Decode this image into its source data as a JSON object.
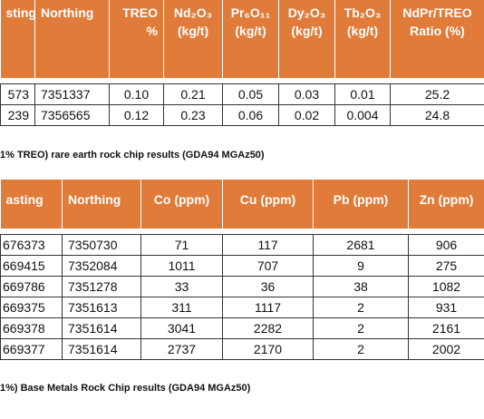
{
  "table1": {
    "header": [
      [
        "sting"
      ],
      [
        "Northing"
      ],
      [
        "TREO",
        "%"
      ],
      [
        "Nd₂O₃",
        "(kg/t)"
      ],
      [
        "Pr₆O₁₁",
        "(kg/t)"
      ],
      [
        "Dy₂O₃",
        "(kg/t)"
      ],
      [
        "Tb₂O₃",
        "(kg/t)"
      ],
      [
        "NdPr/TREO",
        "Ratio (%)"
      ]
    ],
    "rows": [
      [
        "573",
        "7351337",
        "0.10",
        "0.21",
        "0.05",
        "0.03",
        "0.01",
        "25.2"
      ],
      [
        "239",
        "7356565",
        "0.12",
        "0.23",
        "0.06",
        "0.02",
        "0.004",
        "24.8"
      ]
    ],
    "caption": "1% TREO) rare earth rock chip results (GDA94 MGAz50)"
  },
  "table2": {
    "header": [
      "asting",
      "Northing",
      "Co (ppm)",
      "Cu (ppm)",
      "Pb (ppm)",
      "Zn (ppm)"
    ],
    "rows": [
      [
        "676373",
        "7350730",
        "71",
        "117",
        "2681",
        "906"
      ],
      [
        "669415",
        "7352084",
        "1011",
        "707",
        "9",
        "275"
      ],
      [
        "669786",
        "7351278",
        "33",
        "36",
        "38",
        "1082"
      ],
      [
        "669375",
        "7351613",
        "311",
        "1117",
        "2",
        "931"
      ],
      [
        "669378",
        "7351614",
        "3041",
        "2282",
        "2",
        "2161"
      ],
      [
        "669377",
        "7351614",
        "2737",
        "2170",
        "2",
        "2002"
      ]
    ],
    "caption": "1%) Base Metals Rock Chip results (GDA94 MGAz50)"
  }
}
